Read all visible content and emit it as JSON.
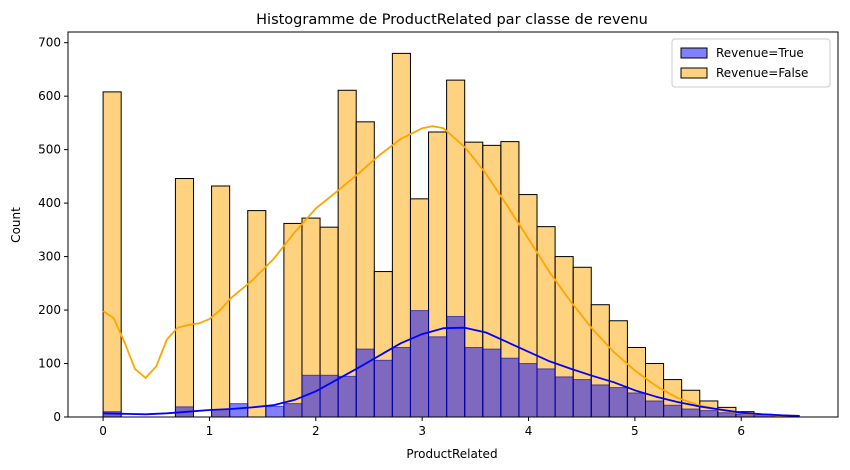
{
  "chart_data": {
    "type": "bar",
    "title": "Histogramme de ProductRelated par classe de revenu",
    "xlabel": "ProductRelated",
    "ylabel": "Count",
    "xlim": [
      -0.33,
      6.91
    ],
    "ylim": [
      0,
      720
    ],
    "x_ticks": [
      0,
      1,
      2,
      3,
      4,
      5,
      6
    ],
    "y_ticks": [
      0,
      100,
      200,
      300,
      400,
      500,
      600,
      700
    ],
    "bin_width": 0.17,
    "bin_left_edges": [
      0.0,
      0.17,
      0.34,
      0.51,
      0.68,
      0.85,
      1.02,
      1.19,
      1.36,
      1.53,
      1.7,
      1.87,
      2.04,
      2.21,
      2.38,
      2.55,
      2.72,
      2.89,
      3.06,
      3.23,
      3.4,
      3.57,
      3.74,
      3.91,
      4.08,
      4.25,
      4.42,
      4.59,
      4.76,
      4.93,
      5.1,
      5.27,
      5.44,
      5.61,
      5.78,
      5.95,
      6.12,
      6.29
    ],
    "legend_position": "top-right",
    "grid": false,
    "series": [
      {
        "name": "Revenue=True",
        "color": "#0000ff",
        "values": [
          10,
          0,
          0,
          0,
          19,
          0,
          14,
          25,
          0,
          20,
          25,
          78,
          78,
          76,
          127,
          106,
          130,
          199,
          150,
          188,
          130,
          127,
          110,
          100,
          90,
          75,
          70,
          60,
          55,
          45,
          30,
          22,
          15,
          12,
          8,
          5,
          3,
          2
        ],
        "kde": [
          [
            0,
            7
          ],
          [
            0.2,
            6
          ],
          [
            0.4,
            5
          ],
          [
            0.6,
            7
          ],
          [
            0.8,
            10
          ],
          [
            1.0,
            13
          ],
          [
            1.2,
            15
          ],
          [
            1.4,
            18
          ],
          [
            1.6,
            22
          ],
          [
            1.8,
            32
          ],
          [
            2.0,
            48
          ],
          [
            2.2,
            70
          ],
          [
            2.4,
            92
          ],
          [
            2.6,
            115
          ],
          [
            2.8,
            138
          ],
          [
            3.0,
            155
          ],
          [
            3.2,
            166
          ],
          [
            3.4,
            167
          ],
          [
            3.6,
            158
          ],
          [
            3.8,
            140
          ],
          [
            4.0,
            122
          ],
          [
            4.2,
            104
          ],
          [
            4.4,
            90
          ],
          [
            4.6,
            77
          ],
          [
            4.8,
            65
          ],
          [
            5.0,
            50
          ],
          [
            5.2,
            38
          ],
          [
            5.4,
            28
          ],
          [
            5.6,
            20
          ],
          [
            5.8,
            14
          ],
          [
            6.0,
            8
          ],
          [
            6.2,
            5
          ],
          [
            6.4,
            3
          ],
          [
            6.55,
            2
          ]
        ]
      },
      {
        "name": "Revenue=False",
        "color": "#ffa500",
        "values": [
          608,
          0,
          0,
          0,
          446,
          0,
          432,
          0,
          386,
          0,
          362,
          372,
          355,
          611,
          552,
          272,
          680,
          408,
          533,
          630,
          514,
          508,
          515,
          416,
          356,
          300,
          280,
          210,
          180,
          130,
          100,
          70,
          50,
          30,
          18,
          10,
          5,
          3
        ],
        "kde": [
          [
            0,
            198
          ],
          [
            0.1,
            185
          ],
          [
            0.2,
            140
          ],
          [
            0.3,
            90
          ],
          [
            0.4,
            73
          ],
          [
            0.5,
            95
          ],
          [
            0.6,
            145
          ],
          [
            0.7,
            167
          ],
          [
            0.8,
            172
          ],
          [
            0.9,
            175
          ],
          [
            1.0,
            183
          ],
          [
            1.1,
            200
          ],
          [
            1.2,
            222
          ],
          [
            1.4,
            255
          ],
          [
            1.6,
            295
          ],
          [
            1.8,
            345
          ],
          [
            2.0,
            390
          ],
          [
            2.2,
            422
          ],
          [
            2.4,
            455
          ],
          [
            2.6,
            490
          ],
          [
            2.8,
            520
          ],
          [
            3.0,
            540
          ],
          [
            3.1,
            544
          ],
          [
            3.2,
            540
          ],
          [
            3.4,
            505
          ],
          [
            3.6,
            455
          ],
          [
            3.8,
            395
          ],
          [
            4.0,
            333
          ],
          [
            4.2,
            270
          ],
          [
            4.4,
            215
          ],
          [
            4.6,
            165
          ],
          [
            4.8,
            122
          ],
          [
            5.0,
            87
          ],
          [
            5.2,
            58
          ],
          [
            5.4,
            36
          ],
          [
            5.6,
            22
          ],
          [
            5.8,
            13
          ],
          [
            6.0,
            7
          ],
          [
            6.2,
            4
          ],
          [
            6.4,
            2
          ],
          [
            6.55,
            1
          ]
        ]
      }
    ]
  }
}
